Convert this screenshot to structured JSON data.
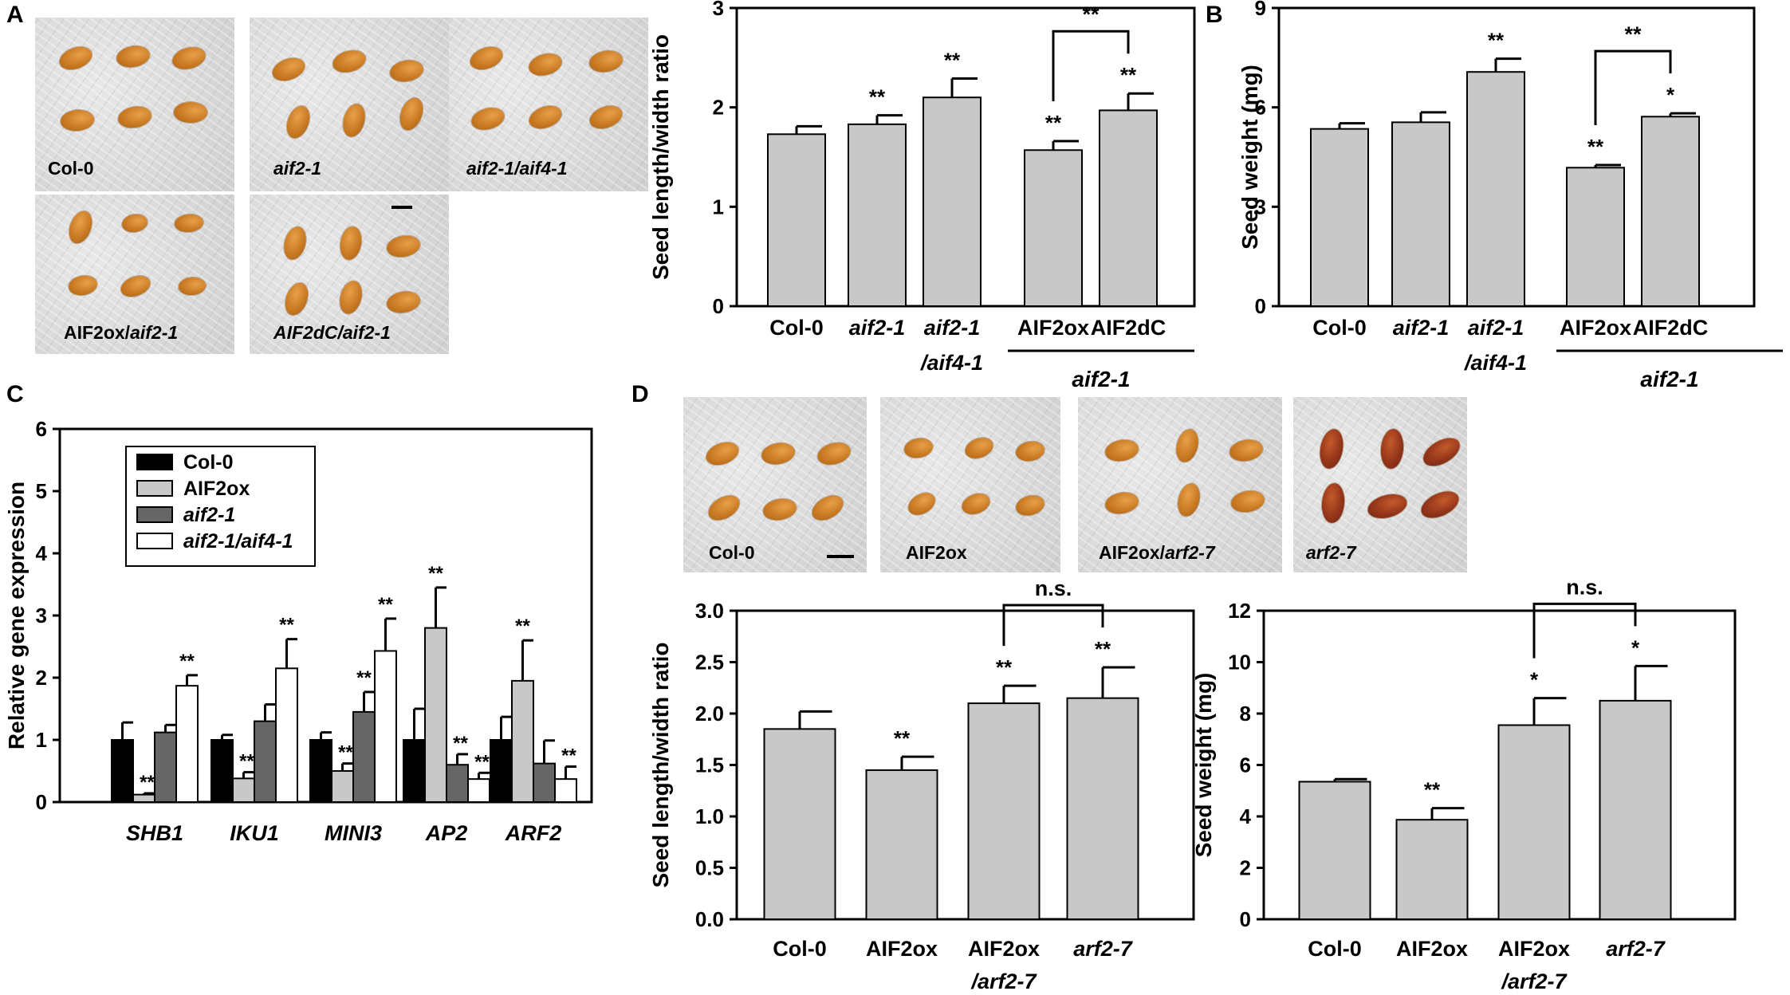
{
  "panel_letters": [
    "A",
    "B",
    "C",
    "D"
  ],
  "photos_A": [
    {
      "label": "Col-0",
      "italic": false
    },
    {
      "label": "aif2-1",
      "italic": true
    },
    {
      "label": "aif2-1/aif4-1",
      "italic": true
    },
    {
      "label_plain": "AIF2ox/",
      "label_italic": "aif2-1"
    },
    {
      "label_plain": "AIF2dC/",
      "label_italic": "aif2-1"
    }
  ],
  "photos_D": [
    {
      "label": "Col-0"
    },
    {
      "label": "AIF2ox"
    },
    {
      "label_plain": "AIF2ox/",
      "label_italic": "arf2-7"
    },
    {
      "label_italic": "arf2-7"
    }
  ],
  "chart_data": [
    {
      "id": "A-ratio",
      "type": "bar",
      "title": "",
      "ylabel": "Seed length/width ratio",
      "xlabel": "",
      "ylim": [
        0,
        3
      ],
      "yticks": [
        "0",
        "1",
        "2",
        "3"
      ],
      "categories": [
        "Col-0",
        "aif2-1",
        "aif2-1 /aif4-1",
        "AIF2ox",
        "AIF2dC"
      ],
      "group_label": "aif2-1",
      "values": [
        1.73,
        1.83,
        2.1,
        1.57,
        1.97
      ],
      "errors": [
        0.08,
        0.09,
        0.19,
        0.09,
        0.17
      ],
      "significance": [
        "",
        "**",
        "**",
        "**",
        "**"
      ],
      "comparison": {
        "from": 3,
        "to": 4,
        "label": "**"
      }
    },
    {
      "id": "B-weight",
      "type": "bar",
      "title": "",
      "ylabel": "Seed weight (mg)",
      "xlabel": "",
      "ylim": [
        0,
        9
      ],
      "yticks": [
        "0",
        "3",
        "6",
        "9"
      ],
      "categories": [
        "Col-0",
        "aif2-1",
        "aif2-1 /aif4-1",
        "AIF2ox",
        "AIF2dC"
      ],
      "group_label": "aif2-1",
      "values": [
        5.35,
        5.55,
        7.07,
        4.18,
        5.72
      ],
      "errors": [
        0.17,
        0.3,
        0.4,
        0.08,
        0.1
      ],
      "significance": [
        "",
        "",
        "**",
        "**",
        "*"
      ],
      "comparison": {
        "from": 3,
        "to": 4,
        "label": "**"
      }
    },
    {
      "id": "C-expression",
      "type": "bar",
      "title": "",
      "ylabel": "Relative gene expression",
      "xlabel": "",
      "ylim": [
        0,
        6
      ],
      "yticks": [
        "0",
        "1",
        "2",
        "3",
        "4",
        "5",
        "6"
      ],
      "categories": [
        "SHB1",
        "IKU1",
        "MINI3",
        "AP2",
        "ARF2"
      ],
      "legend": [
        "Col-0",
        "AIF2ox",
        "aif2-1",
        "aif2-1/aif4-1"
      ],
      "series": [
        {
          "name": "Col-0",
          "color": "#000000",
          "values": [
            1.0,
            1.0,
            1.0,
            1.0,
            1.0
          ],
          "errors": [
            0.28,
            0.08,
            0.12,
            0.5,
            0.37
          ],
          "significance": [
            "",
            "",
            "",
            "",
            ""
          ]
        },
        {
          "name": "AIF2ox",
          "color": "#c8c8c8",
          "values": [
            0.12,
            0.38,
            0.5,
            2.8,
            1.95
          ],
          "errors": [
            0.02,
            0.1,
            0.12,
            0.65,
            0.65
          ],
          "significance": [
            "**",
            "**",
            "**",
            "**",
            "**"
          ]
        },
        {
          "name": "aif2-1",
          "color": "#666666",
          "values": [
            1.12,
            1.3,
            1.45,
            0.6,
            0.62
          ],
          "errors": [
            0.12,
            0.27,
            0.32,
            0.17,
            0.37
          ],
          "significance": [
            "",
            "",
            "**",
            "**",
            ""
          ]
        },
        {
          "name": "aif2-1/aif4-1",
          "color": "#ffffff",
          "values": [
            1.87,
            2.15,
            2.43,
            0.37,
            0.37
          ],
          "errors": [
            0.17,
            0.47,
            0.52,
            0.1,
            0.2
          ],
          "significance": [
            "**",
            "**",
            "**",
            "**",
            "**"
          ]
        }
      ]
    },
    {
      "id": "D-ratio",
      "type": "bar",
      "title": "",
      "ylabel": "Seed length/width ratio",
      "xlabel": "",
      "ylim": [
        0,
        3
      ],
      "yticks": [
        "0.0",
        "0.5",
        "1.0",
        "1.5",
        "2.0",
        "2.5",
        "3.0"
      ],
      "categories": [
        "Col-0",
        "AIF2ox",
        "AIF2ox /arf2-7",
        "arf2-7"
      ],
      "values": [
        1.85,
        1.45,
        2.1,
        2.15
      ],
      "errors": [
        0.17,
        0.13,
        0.17,
        0.3
      ],
      "significance": [
        "",
        "**",
        "**",
        "**"
      ],
      "comparison": {
        "from": 2,
        "to": 3,
        "label": "n.s."
      }
    },
    {
      "id": "D-weight",
      "type": "bar",
      "title": "",
      "ylabel": "Seed weight (mg)",
      "xlabel": "",
      "ylim": [
        0,
        12
      ],
      "yticks": [
        "0",
        "2",
        "4",
        "6",
        "8",
        "10",
        "12"
      ],
      "categories": [
        "Col-0",
        "AIF2ox",
        "AIF2ox /arf2-7",
        "arf2-7"
      ],
      "values": [
        5.35,
        3.87,
        7.55,
        8.5
      ],
      "errors": [
        0.1,
        0.45,
        1.05,
        1.35
      ],
      "significance": [
        "",
        "**",
        "*",
        "*"
      ],
      "comparison": {
        "from": 2,
        "to": 3,
        "label": "n.s."
      }
    }
  ]
}
